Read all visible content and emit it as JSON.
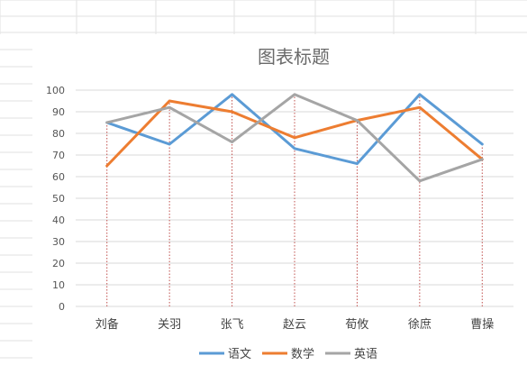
{
  "chart_data": {
    "type": "line",
    "title": "图表标题",
    "categories": [
      "刘备",
      "关羽",
      "张飞",
      "赵云",
      "荀攸",
      "徐庶",
      "曹操"
    ],
    "series": [
      {
        "name": "语文",
        "color": "#5B9BD5",
        "values": [
          85,
          75,
          98,
          73,
          66,
          98,
          75
        ]
      },
      {
        "name": "数学",
        "color": "#ED7D31",
        "values": [
          65,
          95,
          90,
          78,
          86,
          92,
          68
        ]
      },
      {
        "name": "英语",
        "color": "#A5A5A5",
        "values": [
          85,
          92,
          76,
          98,
          86,
          58,
          68
        ]
      }
    ],
    "ylim": [
      0,
      100
    ],
    "ytick_step": 10,
    "yticks": [
      "0",
      "10",
      "20",
      "30",
      "40",
      "50",
      "60",
      "70",
      "80",
      "90",
      "100"
    ],
    "grid": true,
    "drop_lines": true,
    "drop_line_color": "#C0504D",
    "legend_position": "bottom"
  }
}
